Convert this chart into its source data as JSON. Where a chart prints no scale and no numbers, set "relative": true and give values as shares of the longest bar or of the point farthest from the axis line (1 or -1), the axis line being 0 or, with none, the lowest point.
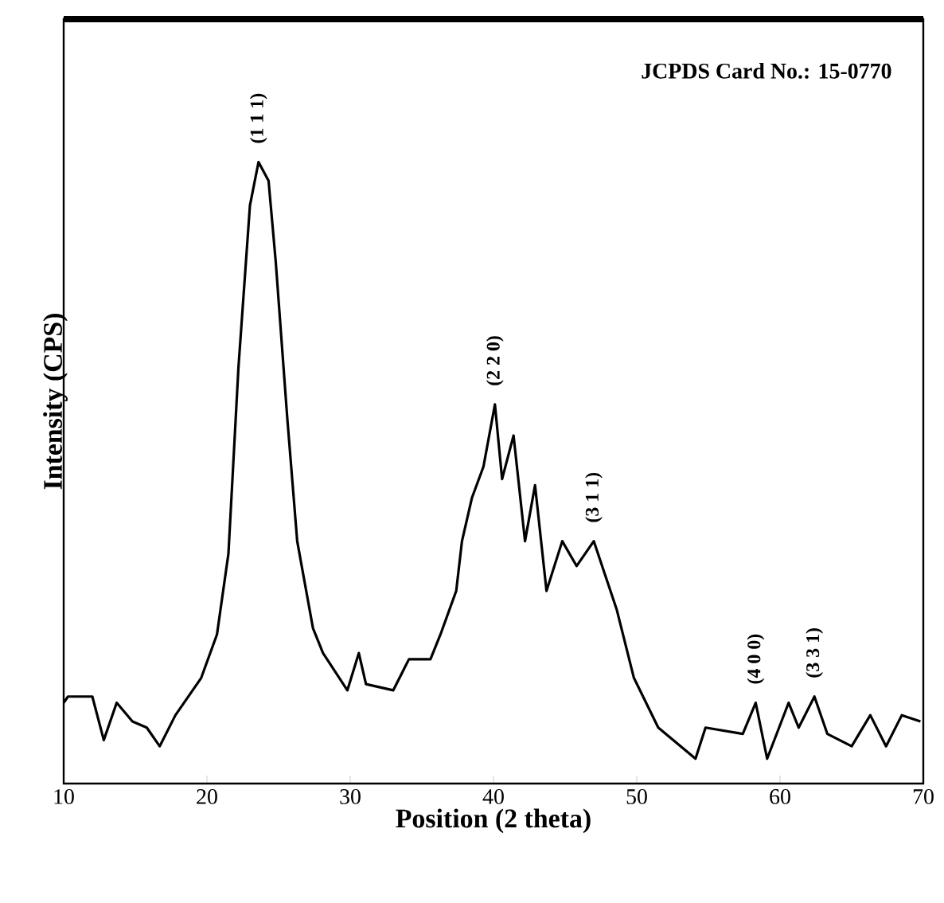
{
  "chart_data": {
    "type": "line",
    "relative": true,
    "xlabel": "Position (2 theta)",
    "ylabel": "Intensity (CPS)",
    "xlim": [
      10,
      70
    ],
    "xticks": [
      10,
      20,
      30,
      40,
      50,
      60,
      70
    ],
    "color": "#000000",
    "x": [
      10,
      10.3,
      12,
      12.8,
      13.7,
      14.8,
      15.8,
      16.7,
      17.8,
      19.6,
      20.7,
      21.5,
      22.2,
      23,
      23.6,
      24.3,
      24.8,
      25.6,
      26.3,
      27.4,
      28.1,
      29.8,
      30.6,
      31.1,
      33,
      34.1,
      35.6,
      36.3,
      37.4,
      37.8,
      38.5,
      39.3,
      40.1,
      40.6,
      41.4,
      42.2,
      42.9,
      43.7,
      44.8,
      45.8,
      47,
      48.6,
      49.8,
      51.5,
      54.1,
      54.8,
      57.4,
      58.3,
      59.1,
      60.6,
      61.3,
      62.4,
      63.3,
      65,
      66.3,
      67.4,
      68.5,
      69.8
    ],
    "values": [
      0.13,
      0.14,
      0.14,
      0.07,
      0.13,
      0.1,
      0.09,
      0.06,
      0.11,
      0.17,
      0.24,
      0.37,
      0.67,
      0.93,
      1.0,
      0.97,
      0.84,
      0.59,
      0.39,
      0.25,
      0.21,
      0.15,
      0.21,
      0.16,
      0.15,
      0.2,
      0.2,
      0.24,
      0.31,
      0.39,
      0.46,
      0.51,
      0.61,
      0.49,
      0.56,
      0.39,
      0.48,
      0.31,
      0.39,
      0.35,
      0.39,
      0.28,
      0.17,
      0.09,
      0.04,
      0.09,
      0.08,
      0.13,
      0.04,
      0.13,
      0.09,
      0.14,
      0.08,
      0.06,
      0.11,
      0.06,
      0.11,
      0.1
    ],
    "annotations": [
      {
        "text": "(1 1 1)",
        "x": 23.6,
        "y": 1.0
      },
      {
        "text": "(2 2 0)",
        "x": 40.1,
        "y": 0.61
      },
      {
        "text": "(3 1 1)",
        "x": 47,
        "y": 0.39
      },
      {
        "text": "(4 0 0)",
        "x": 58.3,
        "y": 0.13
      },
      {
        "text": "(3 3 1)",
        "x": 62.4,
        "y": 0.14
      },
      "JCPDS Card No.: 15-0770"
    ]
  }
}
